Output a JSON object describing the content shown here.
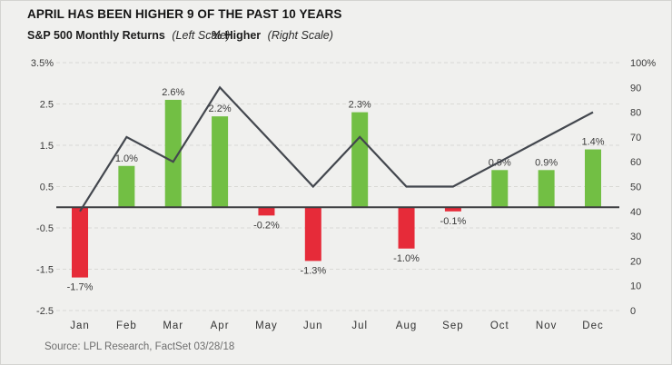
{
  "header": {
    "title": "APRIL HAS BEEN HIGHER 9 OF THE PAST 10 YEARS",
    "legend": {
      "left_name": "S&P 500 Monthly Returns",
      "left_note": "(Left Scale)",
      "right_name": "% Higher",
      "right_note": "(Right Scale)"
    }
  },
  "footer": {
    "source": "Source: LPL Research, FactSet 03/28/18"
  },
  "colors": {
    "background": "#f0f0ee",
    "positive_bar": "#72bf44",
    "negative_bar": "#e62b39",
    "line": "#43474e",
    "grid": "#d9d9d5",
    "axis_line": "#3c3d40",
    "axis_text": "#3b3b3b",
    "value_text": "#3b3b3b"
  },
  "chart_data": {
    "type": "bar",
    "subtype": "bar-with-line-overlay",
    "title": "APRIL HAS BEEN HIGHER 9 OF THE PAST 10 YEARS",
    "categories": [
      "Jan",
      "Feb",
      "Mar",
      "Apr",
      "May",
      "Jun",
      "Jul",
      "Aug",
      "Sep",
      "Oct",
      "Nov",
      "Dec"
    ],
    "series": [
      {
        "name": "S&P 500 Monthly Returns",
        "type": "bar",
        "axis": "left",
        "values": [
          -1.7,
          1.0,
          2.6,
          2.2,
          -0.2,
          -1.3,
          2.3,
          -1.0,
          -0.1,
          0.9,
          0.9,
          1.4
        ],
        "labels": [
          "-1.7%",
          "1.0%",
          "2.6%",
          "2.2%",
          "-0.2%",
          "-1.3%",
          "2.3%",
          "-1.0%",
          "-0.1%",
          "0.9%",
          "0.9%",
          "1.4%"
        ]
      },
      {
        "name": "% Higher",
        "type": "line",
        "axis": "right",
        "values": [
          40,
          70,
          60,
          90,
          70,
          50,
          70,
          50,
          50,
          60,
          70,
          80
        ]
      }
    ],
    "left_axis": {
      "tick_labels": [
        "3.5%",
        "2.5",
        "1.5",
        "0.5",
        "-0.5",
        "-1.5",
        "-2.5"
      ],
      "tick_values": [
        3.5,
        2.5,
        1.5,
        0.5,
        -0.5,
        -1.5,
        -2.5
      ],
      "ylim": [
        -2.5,
        3.5
      ]
    },
    "right_axis": {
      "tick_labels": [
        "100%",
        "90",
        "80",
        "70",
        "60",
        "50",
        "40",
        "30",
        "20",
        "10",
        "0"
      ],
      "tick_values": [
        100,
        90,
        80,
        70,
        60,
        50,
        40,
        30,
        20,
        10,
        0
      ],
      "ylim": [
        0,
        100
      ]
    },
    "grid": "dashed-horizontal",
    "legend_position": "top-left"
  }
}
